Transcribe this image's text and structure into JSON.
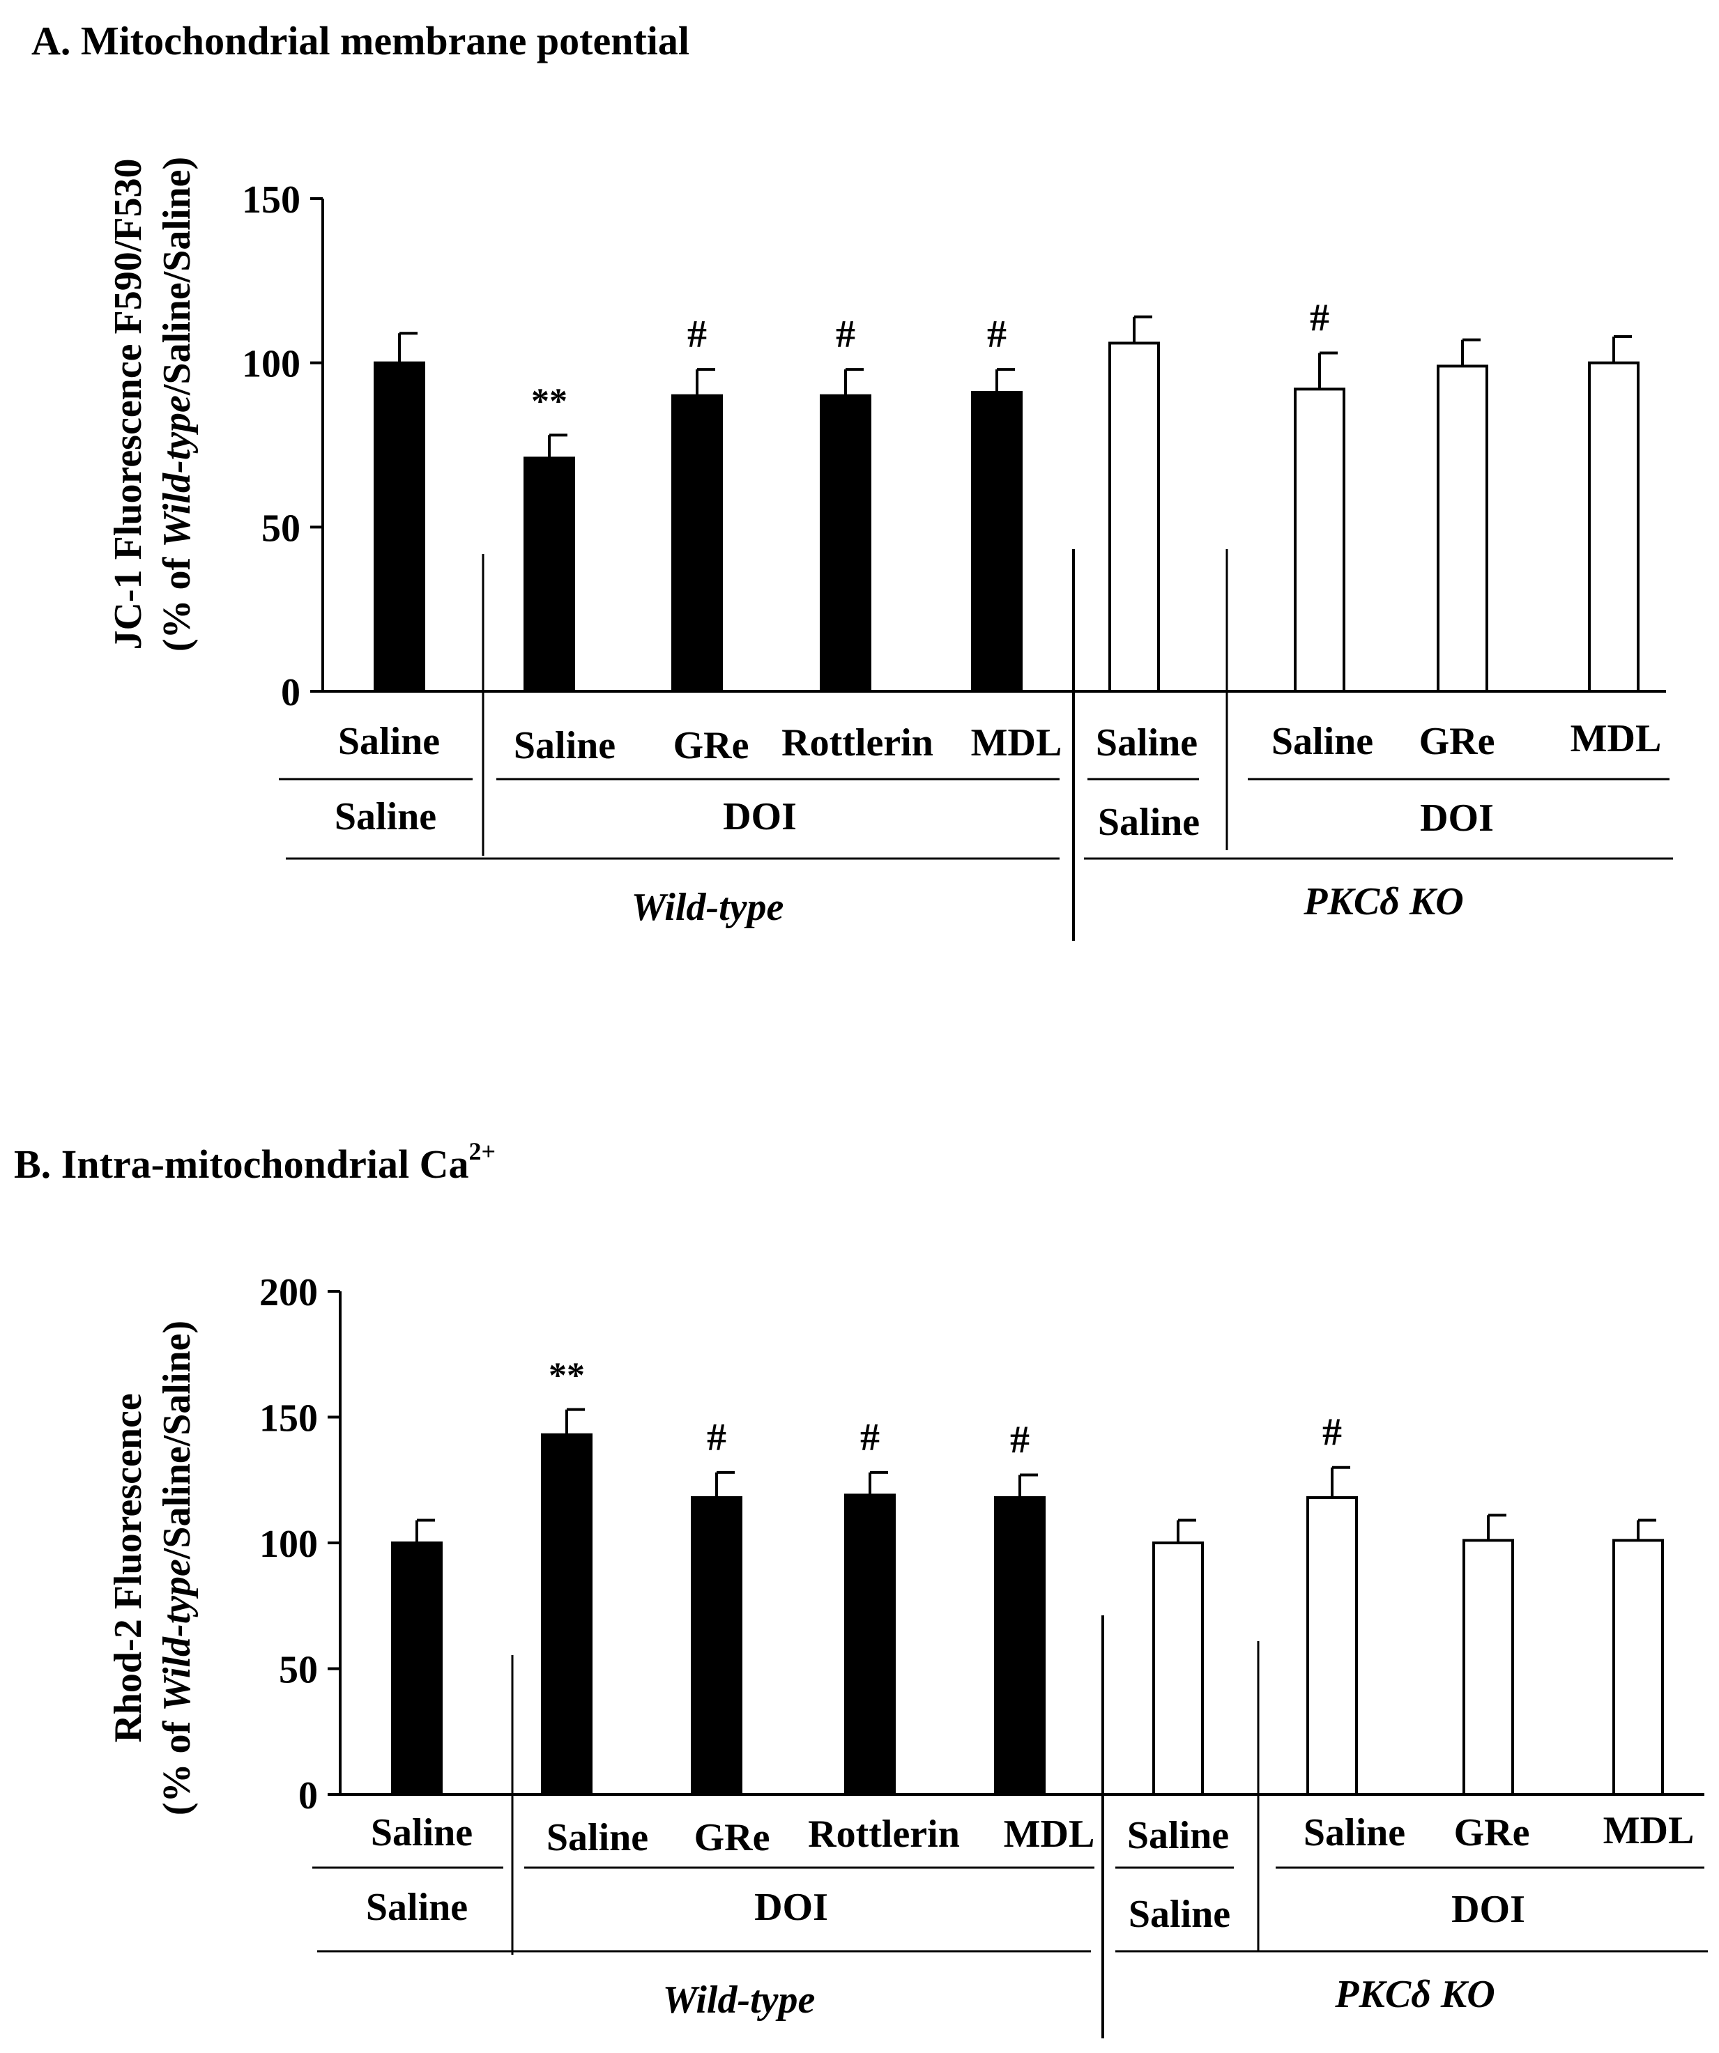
{
  "chart_data": [
    {
      "id": "A",
      "type": "bar",
      "panel_label": "A.",
      "title": "Mitochondrial membrane potential",
      "ylabel_line1": "JC-1 Fluorescence  F590/F530",
      "ylabel_line2_pre": "(% of ",
      "ylabel_line2_em": "Wild-type",
      "ylabel_line2_post": "/Saline/Saline)",
      "ylim": [
        0,
        150
      ],
      "yticks": [
        "0",
        "50",
        "100",
        "150"
      ],
      "categories": [
        "Saline",
        "Saline",
        "GRe",
        "Rottlerin",
        "MDL",
        "Saline",
        "Saline",
        "GRe",
        "MDL"
      ],
      "pretreatment": [
        "Saline",
        "DOI",
        "Saline",
        "DOI"
      ],
      "genotype": [
        "Wild-type",
        "PKCδ KO"
      ],
      "series": [
        {
          "name": "values",
          "values": [
            100,
            71,
            90,
            90,
            91,
            106,
            92,
            99,
            100
          ]
        },
        {
          "name": "error",
          "values": [
            9,
            7,
            8,
            8,
            7,
            8,
            11,
            8,
            8
          ]
        }
      ],
      "fills": [
        "#000000",
        "#000000",
        "#000000",
        "#000000",
        "#000000",
        "#ffffff",
        "#ffffff",
        "#ffffff",
        "#ffffff"
      ],
      "significance": [
        "",
        "**",
        "#",
        "#",
        "#",
        "",
        "#",
        "",
        ""
      ]
    },
    {
      "id": "B",
      "type": "bar",
      "panel_label": "B.",
      "title": "Intra-mitochondrial Ca",
      "title_sup": "2+",
      "ylabel_line1": "Rhod-2 Fluorescence",
      "ylabel_line2_pre": "(% of ",
      "ylabel_line2_em": "Wild-type",
      "ylabel_line2_post": "/Saline/Saline)",
      "ylim": [
        0,
        200
      ],
      "yticks": [
        "0",
        "50",
        "100",
        "150",
        "200"
      ],
      "categories": [
        "Saline",
        "Saline",
        "GRe",
        "Rottlerin",
        "MDL",
        "Saline",
        "Saline",
        "GRe",
        "MDL"
      ],
      "pretreatment": [
        "Saline",
        "DOI",
        "Saline",
        "DOI"
      ],
      "genotype": [
        "Wild-type",
        "PKCδ KO"
      ],
      "series": [
        {
          "name": "values",
          "values": [
            100,
            143,
            118,
            119,
            118,
            100,
            118,
            101,
            101
          ]
        },
        {
          "name": "error",
          "values": [
            9,
            10,
            10,
            9,
            9,
            9,
            12,
            10,
            8
          ]
        }
      ],
      "fills": [
        "#000000",
        "#000000",
        "#000000",
        "#000000",
        "#000000",
        "#ffffff",
        "#ffffff",
        "#ffffff",
        "#ffffff"
      ],
      "significance": [
        "",
        "**",
        "#",
        "#",
        "#",
        "",
        "#",
        "",
        ""
      ]
    }
  ]
}
